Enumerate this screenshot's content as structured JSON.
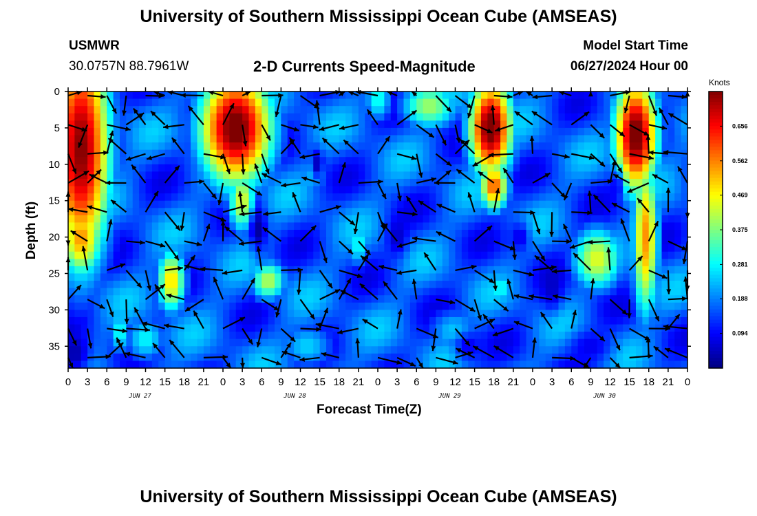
{
  "header": {
    "title": "University of Southern Mississippi Ocean Cube (AMSEAS)",
    "station": "USMWR",
    "coordinates": "30.0757N  88.7961W",
    "subtitle": "2-D Currents Speed-Magnitude",
    "model_start_label": "Model Start Time",
    "model_start_value": "06/27/2024 Hour 00"
  },
  "footer": {
    "title": "University of Southern Mississippi Ocean Cube (AMSEAS)"
  },
  "chart_data": {
    "type": "heatmap",
    "xlabel": "Forecast Time(Z)",
    "ylabel": "Depth (ft)",
    "x_tick_labels": [
      "0",
      "3",
      "6",
      "9",
      "12",
      "15",
      "18",
      "21",
      "0",
      "3",
      "6",
      "9",
      "12",
      "15",
      "18",
      "21",
      "0",
      "3",
      "6",
      "9",
      "12",
      "15",
      "18",
      "21",
      "0",
      "3",
      "6",
      "9",
      "12",
      "15",
      "18",
      "21",
      "0"
    ],
    "day_labels": [
      {
        "label": "JUN 27",
        "hour": 12
      },
      {
        "label": "JUN 28",
        "hour": 36
      },
      {
        "label": "JUN 29",
        "hour": 60
      },
      {
        "label": "JUN 30",
        "hour": 84
      }
    ],
    "xlim_hours": [
      0,
      96
    ],
    "ylim_ft": [
      0,
      38
    ],
    "y_ticks": [
      0,
      5,
      10,
      15,
      20,
      25,
      30,
      35
    ],
    "y_inverted": true,
    "colorbar": {
      "units": "Knots",
      "ticks": [
        0.094,
        0.188,
        0.281,
        0.375,
        0.469,
        0.562,
        0.656
      ],
      "range": [
        0.0,
        0.75
      ],
      "colormap": "jet"
    },
    "blobs": [
      {
        "t": 2,
        "z": 8,
        "w": 4,
        "h": 14,
        "v": 0.75
      },
      {
        "t": 2,
        "z": 20,
        "w": 3,
        "h": 5,
        "v": 0.55
      },
      {
        "t": 26,
        "z": 5,
        "w": 5,
        "h": 7,
        "v": 0.78
      },
      {
        "t": 27,
        "z": 15,
        "w": 2,
        "h": 4,
        "v": 0.45
      },
      {
        "t": 65.5,
        "z": 5,
        "w": 3,
        "h": 6,
        "v": 0.78
      },
      {
        "t": 66,
        "z": 13,
        "w": 2,
        "h": 3,
        "v": 0.6
      },
      {
        "t": 88,
        "z": 6,
        "w": 3,
        "h": 7,
        "v": 0.78
      },
      {
        "t": 89.5,
        "z": 20,
        "w": 1.8,
        "h": 10,
        "v": 0.55
      },
      {
        "t": 16,
        "z": 26,
        "w": 2,
        "h": 4,
        "v": 0.5
      },
      {
        "t": 31,
        "z": 26,
        "w": 2.5,
        "h": 2.5,
        "v": 0.42
      },
      {
        "t": 56,
        "z": 2,
        "w": 4,
        "h": 3,
        "v": 0.4
      },
      {
        "t": 48,
        "z": 1,
        "w": 2,
        "h": 3,
        "v": 0.3
      },
      {
        "t": 82,
        "z": 23,
        "w": 3.5,
        "h": 4,
        "v": 0.45
      },
      {
        "t": 67,
        "z": 27,
        "w": 2,
        "h": 2,
        "v": 0.3
      },
      {
        "t": 45,
        "z": 21,
        "w": 1.5,
        "h": 3,
        "v": 0.3
      },
      {
        "t": 38,
        "z": 11,
        "w": 2,
        "h": 3,
        "v": 0.28
      },
      {
        "t": 8,
        "z": 33,
        "w": 1.5,
        "h": 3,
        "v": 0.3
      },
      {
        "t": 12,
        "z": 34,
        "w": 3,
        "h": 3,
        "v": 0.28
      },
      {
        "t": 37,
        "z": 35,
        "w": 4,
        "h": 3,
        "v": 0.25
      },
      {
        "t": 60,
        "z": 33,
        "w": 4,
        "h": 3,
        "v": 0.25
      }
    ],
    "lows": [
      {
        "t": 29.5,
        "z": 19,
        "w": 1.2,
        "h": 3,
        "v": 0.02
      },
      {
        "t": 51,
        "z": 20,
        "w": 1.5,
        "h": 2.5,
        "v": 0.05
      },
      {
        "t": 1,
        "z": 36,
        "w": 2.5,
        "h": 3,
        "v": 0.03
      },
      {
        "t": 38.5,
        "z": 10,
        "w": 1,
        "h": 2,
        "v": 0.04
      },
      {
        "t": 70,
        "z": 20,
        "w": 1.5,
        "h": 2,
        "v": 0.07
      },
      {
        "t": 81,
        "z": 35,
        "w": 3,
        "h": 2,
        "v": 0.08
      },
      {
        "t": 62,
        "z": 35,
        "w": 2,
        "h": 2,
        "v": 0.08
      },
      {
        "t": 85,
        "z": 13,
        "w": 1,
        "h": 2,
        "v": 0.08
      },
      {
        "t": 75,
        "z": 27,
        "w": 1.5,
        "h": 3,
        "v": 0.05
      }
    ],
    "background": 0.16,
    "arrow_hours": [
      0,
      3,
      6,
      9,
      12,
      15,
      18,
      21,
      24,
      27,
      30,
      33,
      36,
      39,
      42,
      45,
      48,
      51,
      54,
      57,
      60,
      63,
      66,
      69,
      72,
      75,
      78,
      81,
      84,
      87,
      90,
      93,
      96
    ],
    "arrow_depths_ft": [
      0,
      4,
      8,
      12,
      16,
      20,
      24,
      28,
      32,
      36
    ]
  }
}
